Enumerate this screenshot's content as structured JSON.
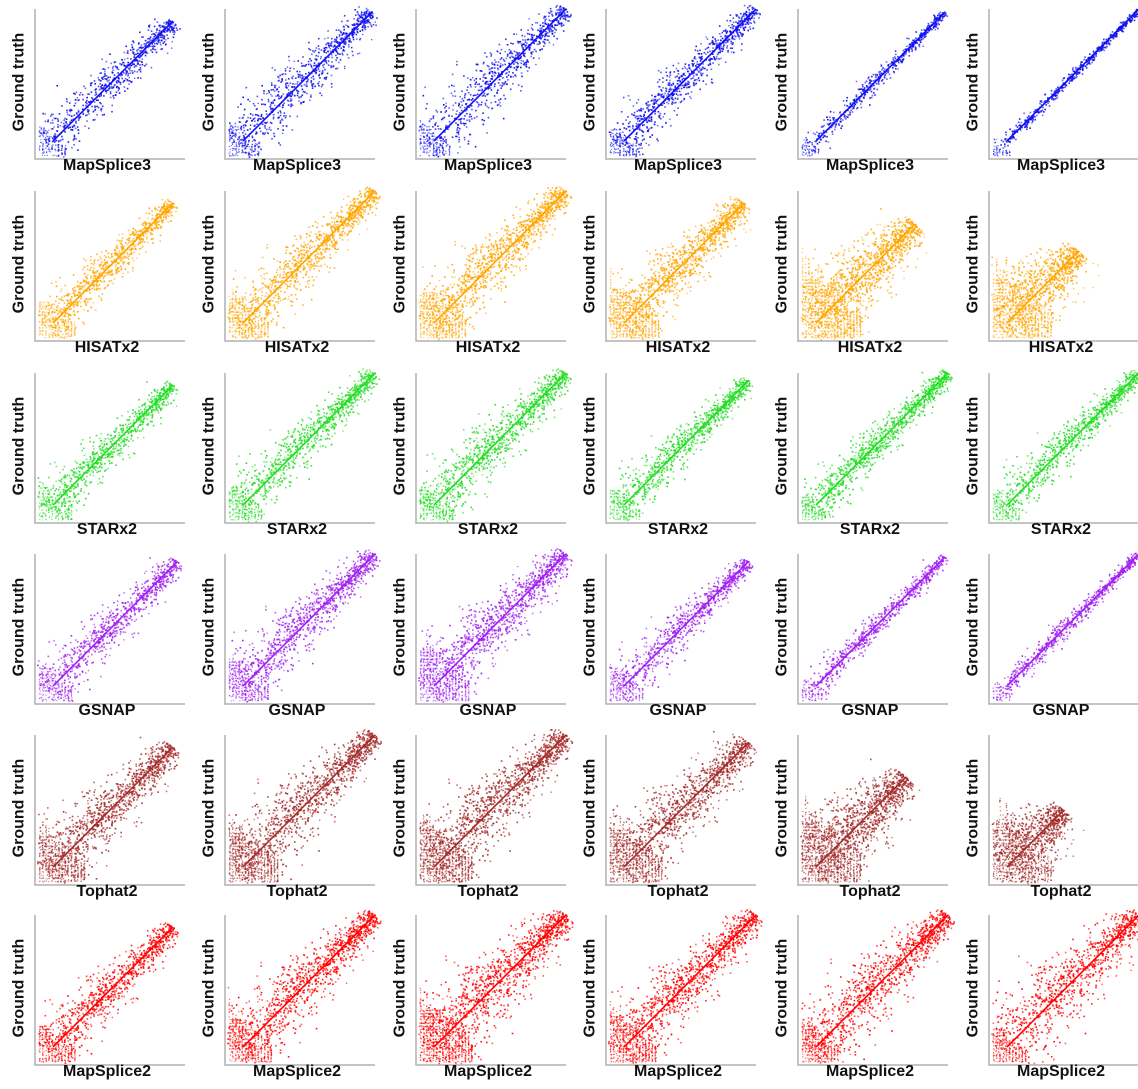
{
  "chart_data": {
    "type": "scatter",
    "layout": "6x6 grid of scatter panels",
    "ylabel": "Ground truth",
    "grid": false,
    "axes_scale": "log-like, no tick labels",
    "rows": [
      {
        "aligner": "MapSplice3",
        "color": "#1010ee",
        "panels": [
          {
            "spread": 0.35,
            "density": 0.45,
            "low_streaks": 0.3,
            "upper_extent": 0.92
          },
          {
            "spread": 0.4,
            "density": 0.55,
            "low_streaks": 0.35,
            "upper_extent": 0.98
          },
          {
            "spread": 0.42,
            "density": 0.55,
            "low_streaks": 0.35,
            "upper_extent": 1.0
          },
          {
            "spread": 0.32,
            "density": 0.6,
            "low_streaks": 0.3,
            "upper_extent": 1.0
          },
          {
            "spread": 0.12,
            "density": 0.3,
            "low_streaks": 0.1,
            "upper_extent": 0.98
          },
          {
            "spread": 0.05,
            "density": 0.3,
            "low_streaks": 0.05,
            "upper_extent": 1.0
          }
        ]
      },
      {
        "aligner": "HISATx2",
        "color": "#ffa500",
        "panels": [
          {
            "spread": 0.3,
            "density": 0.6,
            "low_streaks": 0.5,
            "upper_extent": 0.92
          },
          {
            "spread": 0.4,
            "density": 0.8,
            "low_streaks": 0.6,
            "upper_extent": 1.0
          },
          {
            "spread": 0.45,
            "density": 0.9,
            "low_streaks": 0.7,
            "upper_extent": 1.0
          },
          {
            "spread": 0.45,
            "density": 0.85,
            "low_streaks": 0.8,
            "upper_extent": 0.92
          },
          {
            "spread": 0.6,
            "density": 0.95,
            "low_streaks": 1.0,
            "upper_extent": 0.78
          },
          {
            "spread": 0.65,
            "density": 0.7,
            "low_streaks": 1.0,
            "upper_extent": 0.6
          }
        ]
      },
      {
        "aligner": "STARx2",
        "color": "#22dd22",
        "panels": [
          {
            "spread": 0.32,
            "density": 0.55,
            "low_streaks": 0.4,
            "upper_extent": 0.92
          },
          {
            "spread": 0.35,
            "density": 0.65,
            "low_streaks": 0.4,
            "upper_extent": 1.0
          },
          {
            "spread": 0.42,
            "density": 0.75,
            "low_streaks": 0.4,
            "upper_extent": 1.0
          },
          {
            "spread": 0.3,
            "density": 0.6,
            "low_streaks": 0.35,
            "upper_extent": 0.95
          },
          {
            "spread": 0.28,
            "density": 0.75,
            "low_streaks": 0.2,
            "upper_extent": 1.0
          },
          {
            "spread": 0.3,
            "density": 0.6,
            "low_streaks": 0.3,
            "upper_extent": 1.0
          }
        ]
      },
      {
        "aligner": "GSNAP",
        "color": "#a020f0",
        "panels": [
          {
            "spread": 0.35,
            "density": 0.55,
            "low_streaks": 0.45,
            "upper_extent": 0.95
          },
          {
            "spread": 0.42,
            "density": 0.75,
            "low_streaks": 0.6,
            "upper_extent": 1.0
          },
          {
            "spread": 0.5,
            "density": 0.85,
            "low_streaks": 0.75,
            "upper_extent": 1.0
          },
          {
            "spread": 0.3,
            "density": 0.55,
            "low_streaks": 0.4,
            "upper_extent": 0.95
          },
          {
            "spread": 0.18,
            "density": 0.4,
            "low_streaks": 0.15,
            "upper_extent": 0.98
          },
          {
            "spread": 0.12,
            "density": 0.4,
            "low_streaks": 0.1,
            "upper_extent": 1.0
          }
        ]
      },
      {
        "aligner": "Tophat2",
        "color": "#a52a2a",
        "panels": [
          {
            "spread": 0.5,
            "density": 0.85,
            "low_streaks": 0.7,
            "upper_extent": 0.92
          },
          {
            "spread": 0.55,
            "density": 0.95,
            "low_streaks": 0.8,
            "upper_extent": 1.0
          },
          {
            "spread": 0.55,
            "density": 1.0,
            "low_streaks": 0.85,
            "upper_extent": 1.0
          },
          {
            "spread": 0.55,
            "density": 0.85,
            "low_streaks": 0.85,
            "upper_extent": 0.95
          },
          {
            "spread": 0.65,
            "density": 0.9,
            "low_streaks": 1.0,
            "upper_extent": 0.72
          },
          {
            "spread": 0.65,
            "density": 0.55,
            "low_streaks": 1.0,
            "upper_extent": 0.5
          }
        ]
      },
      {
        "aligner": "MapSplice2",
        "color": "#ff0000",
        "panels": [
          {
            "spread": 0.4,
            "density": 0.65,
            "low_streaks": 0.5,
            "upper_extent": 0.92
          },
          {
            "spread": 0.5,
            "density": 0.9,
            "low_streaks": 0.65,
            "upper_extent": 1.0
          },
          {
            "spread": 0.6,
            "density": 1.0,
            "low_streaks": 0.85,
            "upper_extent": 1.0
          },
          {
            "spread": 0.5,
            "density": 0.85,
            "low_streaks": 0.7,
            "upper_extent": 1.0
          },
          {
            "spread": 0.55,
            "density": 0.9,
            "low_streaks": 0.5,
            "upper_extent": 1.0
          },
          {
            "spread": 0.6,
            "density": 0.8,
            "low_streaks": 0.4,
            "upper_extent": 1.0
          }
        ]
      }
    ]
  }
}
